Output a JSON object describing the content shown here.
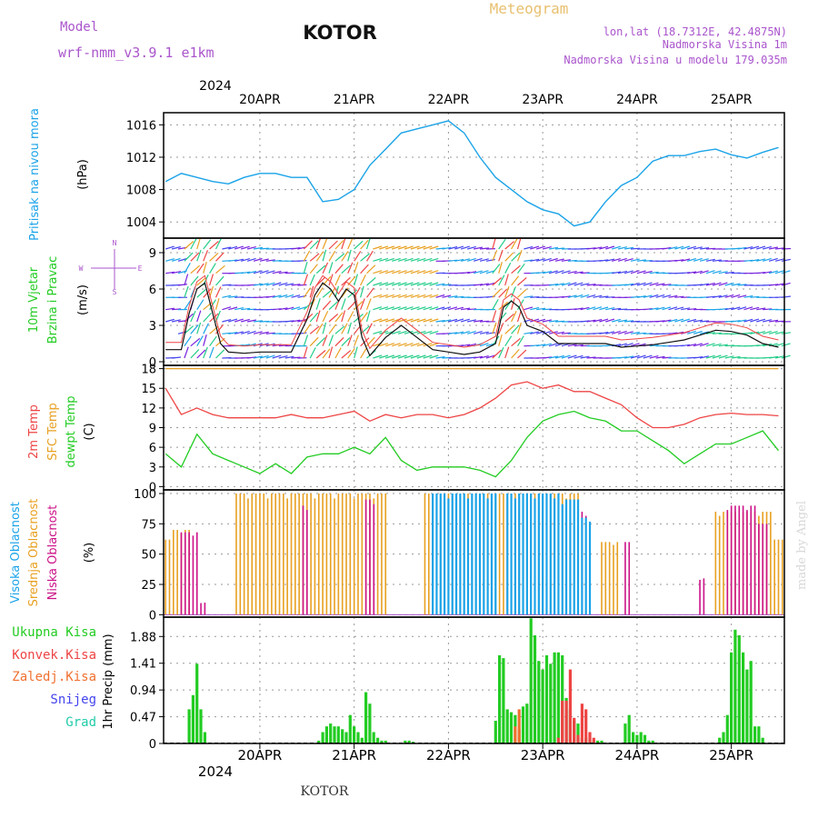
{
  "header": {
    "model_label": "Model",
    "model_name": "wrf-nmm_v3.9.1 e1km",
    "location": "KOTOR",
    "product": "Meteogram",
    "coords": "lon,lat (18.7312E, 42.4875N)",
    "elevation": "Nadmorska Visina 1m",
    "model_elevation": "Nadmorska Visina u modelu 179.035m"
  },
  "footer": {
    "location": "KOTOR",
    "watermark": "made by Angel"
  },
  "colors": {
    "pressure": "#1aa3e8",
    "temp2m": "#ee4444",
    "sfc": "#e8a020",
    "dewpt": "#22cc22",
    "high_cloud": "#1aa3e8",
    "mid_cloud": "#e8a020",
    "low_cloud": "#cc1188",
    "total_precip": "#22cc22",
    "conv_precip": "#ee4444",
    "ice_precip": "#f07030",
    "snow": "#4444ee",
    "graupel": "#22ccaa",
    "header_purple": "#aa55cc",
    "header_gold": "#e8c070"
  },
  "time_axis": {
    "year": "2024",
    "day_labels": [
      "20APR",
      "21APR",
      "22APR",
      "23APR",
      "24APR",
      "25APR"
    ],
    "day_positions_h": [
      12,
      36,
      60,
      84,
      108,
      132
    ],
    "range_h": [
      -12.5,
      145.5
    ]
  },
  "chart_data": [
    {
      "type": "line",
      "name": "pressure",
      "ylabel": [
        "Pritisak na nivou mora",
        "(hPa)"
      ],
      "yticks": [
        "1004",
        "1008",
        "1012",
        "1016"
      ],
      "ylim": [
        1002,
        1017.5
      ],
      "x": [
        -12,
        -8,
        -4,
        0,
        4,
        8,
        12,
        16,
        20,
        24,
        28,
        32,
        36,
        40,
        44,
        48,
        52,
        56,
        60,
        64,
        68,
        72,
        76,
        80,
        84,
        88,
        92,
        96,
        100,
        104,
        108,
        112,
        116,
        120,
        124,
        128,
        132,
        136,
        140,
        144
      ],
      "values": [
        1009,
        1010,
        1009.5,
        1009,
        1008.7,
        1009.5,
        1010,
        1010,
        1009.5,
        1009.5,
        1006.5,
        1006.8,
        1008,
        1011,
        1013,
        1015,
        1015.5,
        1016,
        1016.5,
        1015,
        1012,
        1009.5,
        1008,
        1006.5,
        1005.5,
        1005,
        1003.5,
        1004,
        1006.5,
        1008.5,
        1009.5,
        1011.5,
        1012.2,
        1012.2,
        1012.7,
        1013,
        1012.3,
        1011.9,
        1012.6,
        1013.2
      ]
    },
    {
      "type": "line",
      "name": "wind",
      "ylabel": [
        "10m Vjetar",
        "Brzina i Pravac",
        "(m/s)"
      ],
      "compass": [
        "N",
        "W",
        "E",
        "S"
      ],
      "yticks": [
        "0",
        "3",
        "6",
        "9"
      ],
      "ylim": [
        -0.3,
        10.2
      ],
      "x": [
        -12,
        -8,
        -6,
        -4,
        -2,
        0,
        2,
        4,
        8,
        12,
        16,
        20,
        24,
        26,
        28,
        30,
        32,
        34,
        36,
        38,
        40,
        44,
        48,
        52,
        56,
        60,
        64,
        68,
        72,
        74,
        76,
        78,
        80,
        84,
        88,
        92,
        96,
        100,
        104,
        108,
        112,
        116,
        120,
        124,
        128,
        132,
        136,
        140,
        144
      ],
      "values": [
        1,
        1,
        4,
        6,
        6.5,
        4,
        1.5,
        0.8,
        0.7,
        0.8,
        0.8,
        0.8,
        3.5,
        5.5,
        6.5,
        6,
        5,
        6,
        5.5,
        2,
        0.5,
        2,
        3,
        2,
        1,
        0.8,
        0.6,
        0.8,
        1.5,
        4.5,
        5,
        4.5,
        3,
        2.5,
        1.5,
        1.5,
        1.5,
        1.5,
        1.2,
        1.3,
        1.4,
        1.6,
        1.8,
        2.2,
        2.6,
        2.5,
        2.2,
        1.5,
        1.2
      ]
    },
    {
      "type": "line",
      "name": "temperature",
      "ylabel": [
        "2m Temp",
        "SFC Temp",
        "dewpt Temp",
        "(C)"
      ],
      "yticks": [
        "0",
        "3",
        "6",
        "9",
        "12",
        "15",
        "18"
      ],
      "ylim": [
        -0.5,
        18.5
      ],
      "x": [
        -12,
        -8,
        -4,
        0,
        4,
        8,
        12,
        16,
        20,
        24,
        28,
        32,
        36,
        40,
        44,
        48,
        52,
        56,
        60,
        64,
        68,
        72,
        76,
        80,
        84,
        88,
        92,
        96,
        100,
        104,
        108,
        112,
        116,
        120,
        124,
        128,
        132,
        136,
        140,
        144
      ],
      "series": [
        {
          "name": "2m",
          "values": [
            15,
            11,
            12,
            11,
            10.5,
            10.5,
            10.5,
            10.5,
            11,
            10.5,
            10.5,
            11,
            11.5,
            10,
            11,
            10.5,
            11,
            11,
            10.5,
            11,
            12,
            13.5,
            15.5,
            16,
            15,
            15.5,
            14.5,
            14.5,
            13.5,
            12.5,
            10.5,
            9,
            9,
            9.5,
            10.5,
            11,
            11.2,
            11,
            11,
            10.8
          ]
        },
        {
          "name": "sfc",
          "values": [
            18,
            18,
            18,
            18,
            18,
            18,
            18,
            18,
            18,
            18,
            18,
            18,
            18,
            18,
            18,
            18,
            18,
            18,
            18,
            18,
            18,
            18,
            18,
            18,
            18,
            18,
            18,
            18,
            18,
            18,
            18,
            18,
            18,
            18,
            18,
            18,
            18,
            18,
            18,
            18
          ]
        },
        {
          "name": "dewpt",
          "values": [
            5,
            3,
            8,
            5,
            4,
            3,
            2,
            3.5,
            2,
            4.5,
            5,
            5,
            6,
            5,
            7.5,
            4,
            2.5,
            3,
            3,
            3,
            2.5,
            1.5,
            4,
            7.5,
            10,
            11,
            11.5,
            10.5,
            10,
            8.5,
            8.5,
            7,
            5.5,
            3.5,
            5,
            6.5,
            6.5,
            7.5,
            8.5,
            5.5
          ]
        }
      ]
    },
    {
      "type": "bar",
      "name": "cloud",
      "ylabel": [
        "Visoka Oblacnost",
        "Srednja Oblacnost",
        "Niska Oblacnost",
        "(%)"
      ],
      "yticks": [
        "0",
        "25",
        "50",
        "75",
        "100"
      ],
      "ylim": [
        -2,
        103
      ],
      "series": [
        {
          "name": "mid",
          "segments": [
            [
              -12,
              -11,
              62
            ],
            [
              -10,
              -6,
              70
            ],
            [
              6,
              22,
              100
            ],
            [
              23,
              44,
              100
            ],
            [
              54,
              71,
              100
            ],
            [
              72,
              93,
              100
            ],
            [
              99,
              103,
              60
            ],
            [
              128,
              142,
              85
            ],
            [
              143,
              145,
              62
            ]
          ]
        },
        {
          "name": "low",
          "segments": [
            [
              -8,
              -4,
              68
            ],
            [
              -3,
              -2,
              10
            ],
            [
              23,
              24,
              90
            ],
            [
              39,
              41,
              95
            ],
            [
              75,
              84,
              90
            ],
            [
              94,
              95,
              85
            ],
            [
              105,
              106,
              60
            ],
            [
              124,
              125,
              30
            ],
            [
              131,
              138,
              90
            ],
            [
              139,
              141,
              75
            ]
          ]
        },
        {
          "name": "high",
          "segments": [
            [
              56,
              72,
              100
            ],
            [
              75,
              88,
              100
            ],
            [
              89,
              93,
              95
            ],
            [
              94,
              96,
              80
            ]
          ]
        }
      ]
    },
    {
      "type": "bar",
      "name": "precipitation",
      "ylabel": [
        "1hr Precip (mm)"
      ],
      "series_labels": [
        "Ukupna Kisa",
        "Konvek.Kisa",
        "Zaledj.Kisa",
        "Snijeg",
        "Grad"
      ],
      "yticks": [
        "0",
        "0.47",
        "0.94",
        "1.41",
        "1.88"
      ],
      "ylim": [
        0,
        2.22
      ],
      "series": [
        {
          "name": "total",
          "x": [
            -6,
            -5,
            -4,
            -3,
            -2,
            27,
            28,
            29,
            30,
            31,
            32,
            33,
            34,
            35,
            36,
            37,
            38,
            39,
            40,
            41,
            42,
            43,
            44,
            49,
            50,
            51,
            72,
            73,
            74,
            75,
            76,
            77,
            78,
            79,
            80,
            81,
            82,
            83,
            84,
            85,
            86,
            87,
            88,
            89,
            90,
            91,
            92,
            93,
            94,
            95,
            96,
            97,
            98,
            99,
            105,
            106,
            107,
            108,
            109,
            110,
            111,
            112,
            129,
            130,
            131,
            132,
            133,
            134,
            135,
            136,
            137,
            138,
            139,
            140
          ],
          "values": [
            0.6,
            0.85,
            1.4,
            0.6,
            0.2,
            0.05,
            0.2,
            0.3,
            0.35,
            0.3,
            0.3,
            0.25,
            0.2,
            0.5,
            0.3,
            0.2,
            0.1,
            0.9,
            0.7,
            0.2,
            0.1,
            0.05,
            0.05,
            0.05,
            0.05,
            0.03,
            0.4,
            1.55,
            1.5,
            0.6,
            0.55,
            0.5,
            0.25,
            0.65,
            0.7,
            2.2,
            1.9,
            1.45,
            1.3,
            1.55,
            1.4,
            1.6,
            1.6,
            1.55,
            0.8,
            0.6,
            0.4,
            0.35,
            0.1,
            0.1,
            0.05,
            0.05,
            0.05,
            0.05,
            0.35,
            0.5,
            0.2,
            0.15,
            0.2,
            0.15,
            0.05,
            0.05,
            0.1,
            0.2,
            0.5,
            1.6,
            2.0,
            1.9,
            1.6,
            1.3,
            1.45,
            0.3,
            0.3,
            0.1
          ]
        },
        {
          "name": "convective",
          "x": [
            88,
            89,
            90,
            91,
            92,
            93,
            94,
            95,
            96,
            97
          ],
          "values": [
            0.1,
            0.75,
            0.75,
            1.3,
            0.45,
            0.15,
            0.7,
            0.6,
            0.2,
            0.1
          ]
        },
        {
          "name": "freezing",
          "x": [
            77,
            78
          ],
          "values": [
            0.3,
            0.6
          ]
        }
      ]
    }
  ]
}
